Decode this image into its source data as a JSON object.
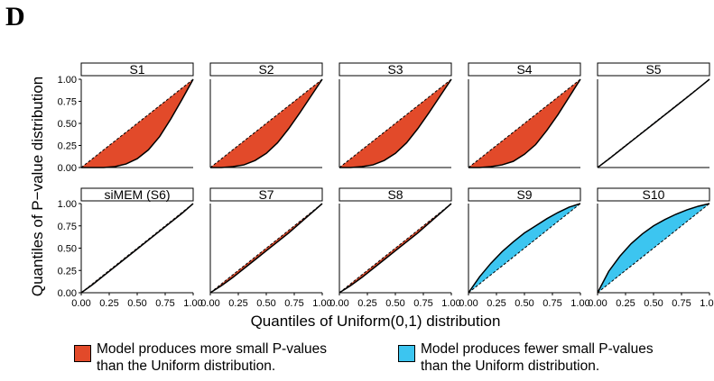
{
  "panel_label": "D",
  "legend": {
    "more": {
      "line1": "Model produces more small P-values",
      "line2": "than the Uniform distribution.",
      "color": "#e24a2a"
    },
    "fewer": {
      "line1": "Model produces fewer small P-values",
      "line2": "than the Uniform distribution.",
      "color": "#3cc5f0"
    }
  },
  "chart_data": {
    "type": "area",
    "xlabel": "Quantiles of Uniform(0,1) distribution",
    "ylabel": "Quantiles of P−value distribution",
    "xlim": [
      0,
      1
    ],
    "ylim": [
      0,
      1
    ],
    "x_ticks": [
      "0.00",
      "0.25",
      "0.50",
      "0.75",
      "1.00"
    ],
    "y_ticks": [
      "0.00",
      "0.25",
      "0.50",
      "0.75",
      "1.00"
    ],
    "reference_line": "y = x (dashed)",
    "grid": false,
    "x": [
      0,
      0.1,
      0.2,
      0.3,
      0.4,
      0.5,
      0.6,
      0.7,
      0.8,
      0.9,
      1.0
    ],
    "series": [
      {
        "name": "S1",
        "fill": "more",
        "values": [
          0,
          0.0,
          0.0,
          0.01,
          0.04,
          0.1,
          0.2,
          0.35,
          0.55,
          0.77,
          1.0
        ]
      },
      {
        "name": "S2",
        "fill": "more",
        "values": [
          0,
          0.0,
          0.01,
          0.03,
          0.08,
          0.16,
          0.28,
          0.44,
          0.62,
          0.81,
          1.0
        ]
      },
      {
        "name": "S3",
        "fill": "more",
        "values": [
          0,
          0.0,
          0.01,
          0.03,
          0.08,
          0.16,
          0.28,
          0.44,
          0.62,
          0.81,
          1.0
        ]
      },
      {
        "name": "S4",
        "fill": "more",
        "values": [
          0,
          0.0,
          0.01,
          0.03,
          0.07,
          0.15,
          0.26,
          0.42,
          0.6,
          0.8,
          1.0
        ]
      },
      {
        "name": "S5",
        "fill": "more",
        "values": [
          0,
          0.095,
          0.195,
          0.295,
          0.395,
          0.495,
          0.595,
          0.695,
          0.795,
          0.897,
          1.0
        ]
      },
      {
        "name": "siMEM (S6)",
        "fill": "more",
        "values": [
          0,
          0.09,
          0.19,
          0.29,
          0.39,
          0.49,
          0.59,
          0.69,
          0.79,
          0.89,
          1.0
        ]
      },
      {
        "name": "S7",
        "fill": "more",
        "values": [
          0,
          0.08,
          0.17,
          0.27,
          0.37,
          0.47,
          0.57,
          0.67,
          0.78,
          0.89,
          1.0
        ]
      },
      {
        "name": "S8",
        "fill": "more",
        "values": [
          0,
          0.08,
          0.17,
          0.27,
          0.37,
          0.47,
          0.57,
          0.67,
          0.78,
          0.89,
          1.0
        ]
      },
      {
        "name": "S9",
        "fill": "fewer",
        "values": [
          0,
          0.18,
          0.33,
          0.46,
          0.57,
          0.67,
          0.75,
          0.83,
          0.9,
          0.96,
          1.0
        ]
      },
      {
        "name": "S10",
        "fill": "fewer",
        "values": [
          0,
          0.24,
          0.41,
          0.55,
          0.66,
          0.75,
          0.82,
          0.88,
          0.93,
          0.97,
          1.0
        ]
      }
    ]
  }
}
